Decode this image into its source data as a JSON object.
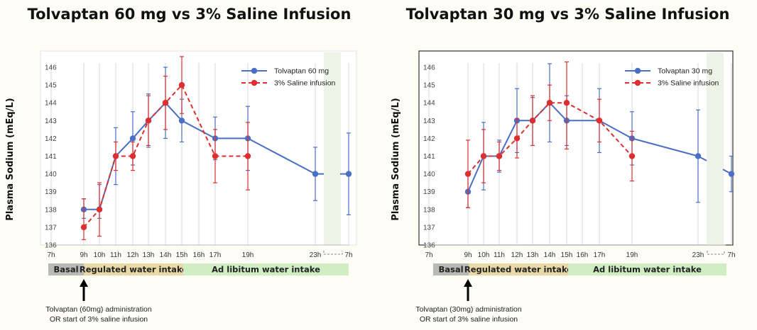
{
  "colors": {
    "tolvaptan": "#4a6fc4",
    "saline": "#dc2f2f",
    "basal": "#b8bab6",
    "regulated": "#e8d9a6",
    "adlib": "#cfeec3",
    "background": "#fdfdf6"
  },
  "panels": [
    {
      "title": "Tolvaptan 60 mg vs 3% Saline Infusion",
      "caption_line1": "Tolvaptan (60mg) administration",
      "caption_line2": "OR start of 3% saline infusion"
    },
    {
      "title": "Tolvaptan 30 mg vs 3% Saline Infusion",
      "caption_line1": "Tolvaptan (30mg) administration",
      "caption_line2": "OR start of 3% saline infusion"
    }
  ],
  "phases": {
    "basal": "Basal",
    "regulated": "Regulated water intake",
    "adlib": "Ad libitum water intake"
  },
  "chart_data": [
    {
      "type": "line",
      "title": "Tolvaptan 60 mg vs 3% Saline Infusion",
      "ylabel": "Plasma Sodium (mEq/L)",
      "xlabel": "",
      "ylim": [
        136,
        146
      ],
      "yticks": [
        136,
        137,
        138,
        139,
        140,
        141,
        142,
        143,
        144,
        145,
        146
      ],
      "x_ticks": [
        "7h",
        "9h",
        "10h",
        "11h",
        "12h",
        "13h",
        "14h",
        "15h",
        "16h",
        "17h",
        "19h",
        "23h",
        "7h"
      ],
      "grid": "vertical",
      "legend": "top-right",
      "series": [
        {
          "name": "Tolvaptan 60 mg",
          "style": "solid",
          "x": [
            "9h",
            "10h",
            "11h",
            "12h",
            "13h",
            "14h",
            "15h",
            "17h",
            "19h",
            "23h",
            "7h"
          ],
          "y": [
            138,
            138,
            141,
            142,
            143,
            144,
            143,
            142,
            142,
            140,
            140
          ],
          "err_low": [
            137.5,
            137.5,
            139.4,
            140.5,
            141.5,
            142,
            141.8,
            140.8,
            140.2,
            138.5,
            137.7
          ],
          "err_high": [
            138.6,
            139.4,
            142.6,
            143.5,
            144.5,
            146,
            144.2,
            143.2,
            143.8,
            141.5,
            142.3
          ]
        },
        {
          "name": "3% Saline infusion",
          "style": "dashed",
          "x": [
            "9h",
            "10h",
            "11h",
            "12h",
            "13h",
            "14h",
            "15h",
            "17h",
            "19h"
          ],
          "y": [
            137,
            138,
            141,
            141,
            143,
            144,
            145,
            141,
            141
          ],
          "err_low": [
            136.3,
            136.5,
            140.2,
            140.2,
            141.6,
            142.5,
            143.4,
            139.5,
            139.1
          ],
          "err_high": [
            138.6,
            139.5,
            141.8,
            141.8,
            144.4,
            145.5,
            146.6,
            142.5,
            142.9
          ]
        }
      ]
    },
    {
      "type": "line",
      "title": "Tolvaptan 30 mg vs 3% Saline Infusion",
      "ylabel": "Plasma Sodium (mEq/L)",
      "xlabel": "",
      "ylim": [
        136,
        146
      ],
      "yticks": [
        136,
        137,
        138,
        139,
        140,
        141,
        142,
        143,
        144,
        145,
        146
      ],
      "x_ticks": [
        "7h",
        "9h",
        "10h",
        "11h",
        "12h",
        "13h",
        "14h",
        "15h",
        "16h",
        "17h",
        "19h",
        "23h",
        "7h"
      ],
      "grid": "vertical",
      "legend": "top-right",
      "series": [
        {
          "name": "Tolvaptan 30 mg",
          "style": "solid",
          "x": [
            "9h",
            "10h",
            "11h",
            "12h",
            "13h",
            "14h",
            "15h",
            "17h",
            "19h",
            "23h",
            "7h"
          ],
          "y": [
            139,
            141,
            141,
            143,
            143,
            144,
            143,
            143,
            142,
            141,
            140
          ],
          "err_low": [
            138.1,
            139.1,
            140.1,
            141.2,
            141.6,
            141.8,
            141.6,
            141.2,
            140.5,
            138.4,
            139
          ],
          "err_high": [
            139.9,
            142.9,
            141.9,
            144.8,
            144.3,
            146.2,
            144.4,
            144.8,
            143.5,
            143.6,
            141
          ]
        },
        {
          "name": "3% Saline infusion",
          "style": "dashed",
          "x": [
            "9h",
            "10h",
            "11h",
            "12h",
            "13h",
            "14h",
            "15h",
            "17h",
            "19h"
          ],
          "y": [
            140,
            141,
            141,
            142,
            143,
            144,
            144,
            143,
            141
          ],
          "err_low": [
            138.1,
            139.5,
            140.2,
            140.9,
            141.6,
            143,
            141.4,
            141.8,
            139.6
          ],
          "err_high": [
            141.9,
            142.5,
            141.8,
            143.1,
            144.4,
            145,
            146.3,
            144.2,
            142.4
          ]
        }
      ]
    }
  ]
}
